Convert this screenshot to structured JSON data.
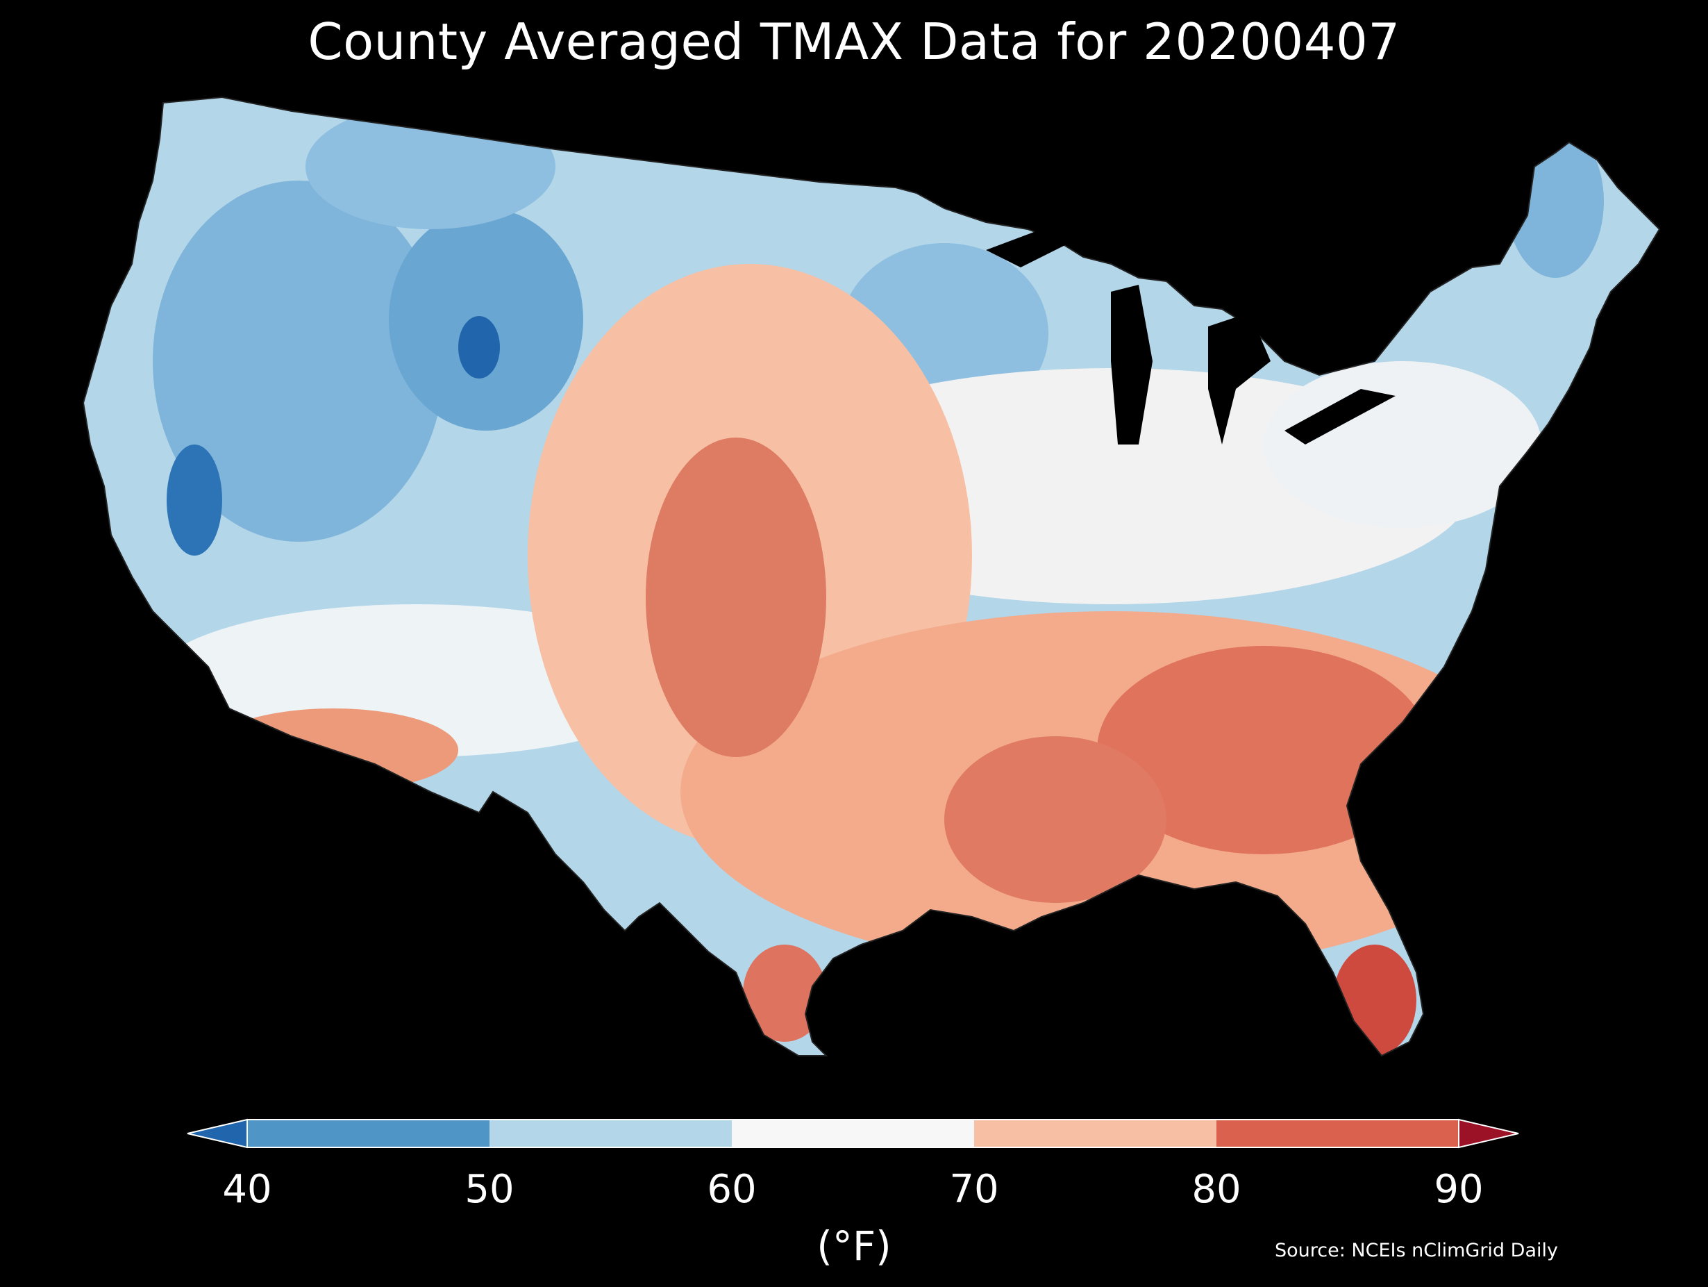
{
  "title": "County Averaged TMAX Data for 20200407",
  "legend": {
    "ticks": [
      "40",
      "50",
      "60",
      "70",
      "80",
      "90"
    ],
    "units": "(°F)",
    "bins": [
      {
        "range": "<40",
        "color": "#2166ac"
      },
      {
        "range": "40-50",
        "color": "#4f96c7"
      },
      {
        "range": "50-60",
        "color": "#b3d6e9"
      },
      {
        "range": "60-70",
        "color": "#f7f7f7"
      },
      {
        "range": "70-80",
        "color": "#f7c0a4"
      },
      {
        "range": "80-90",
        "color": "#d9614d"
      },
      {
        "range": ">90",
        "color": "#9b1126"
      }
    ]
  },
  "source": "Source: NCEIs nClimGrid Daily",
  "colors": {
    "background": "#000000",
    "border": "#ffffff"
  }
}
